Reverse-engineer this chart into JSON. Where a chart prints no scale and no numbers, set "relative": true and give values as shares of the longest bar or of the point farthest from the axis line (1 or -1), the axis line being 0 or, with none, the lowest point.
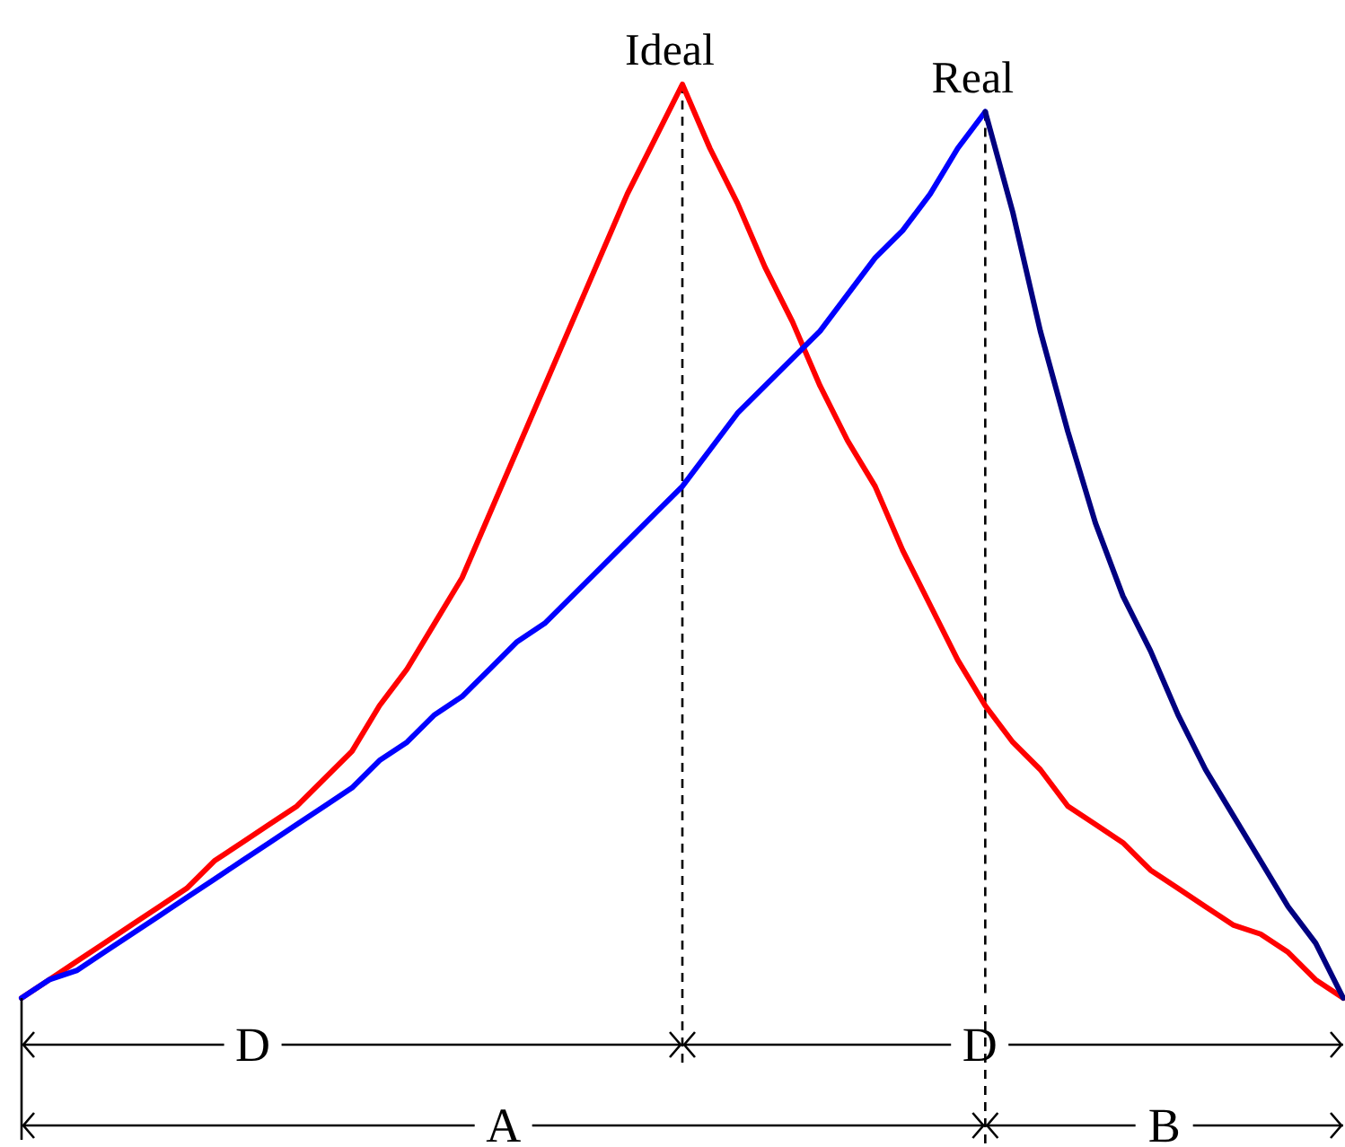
{
  "chart_data": {
    "type": "line",
    "relative": true,
    "line_style": "solid",
    "categories": [
      null,
      null,
      null,
      null,
      null,
      null,
      null,
      null,
      null,
      null,
      null,
      null,
      null,
      null,
      null,
      null,
      null,
      null,
      null,
      null,
      null,
      null,
      null,
      null,
      null,
      null,
      null,
      null,
      null,
      null,
      null,
      null,
      null,
      null,
      null,
      null,
      null,
      null,
      null,
      null,
      null,
      null,
      null,
      null,
      null,
      null,
      null,
      null,
      null
    ],
    "series": [
      {
        "name": "Ideal",
        "color": "#ff0000",
        "values": [
          0,
          0.02,
          0.04,
          0.06,
          0.08,
          0.1,
          0.12,
          0.15,
          0.17,
          0.19,
          0.21,
          0.24,
          0.27,
          0.32,
          0.36,
          0.41,
          0.46,
          0.53,
          0.6,
          0.67,
          0.74,
          0.81,
          0.88,
          0.94,
          1,
          0.93,
          0.87,
          0.8,
          0.74,
          0.67,
          0.61,
          0.56,
          0.49,
          0.43,
          0.37,
          0.32,
          0.28,
          0.25,
          0.21,
          0.19,
          0.17,
          0.14,
          0.12,
          0.1,
          0.08,
          0.07,
          0.05,
          0.02,
          0
        ]
      },
      {
        "name": "Real",
        "color": "#0000ff",
        "values": [
          0,
          0.02,
          0.03,
          0.05,
          0.07,
          0.09,
          0.11,
          0.13,
          0.15,
          0.17,
          0.19,
          0.21,
          0.23,
          0.26,
          0.28,
          0.31,
          0.33,
          0.36,
          0.39,
          0.41,
          0.44,
          0.47,
          0.5,
          0.53,
          0.56,
          0.6,
          0.64,
          0.67,
          0.7,
          0.73,
          0.77,
          0.81,
          0.84,
          0.88,
          0.93,
          0.97,
          null,
          null,
          null,
          null,
          null,
          null,
          null,
          null,
          null,
          null,
          null,
          null,
          null
        ]
      },
      {
        "color": "#000080",
        "values": [
          null,
          null,
          null,
          null,
          null,
          null,
          null,
          null,
          null,
          null,
          null,
          null,
          null,
          null,
          null,
          null,
          null,
          null,
          null,
          null,
          null,
          null,
          null,
          null,
          null,
          null,
          null,
          null,
          null,
          null,
          null,
          null,
          null,
          null,
          null,
          0.97,
          0.86,
          0.73,
          0.62,
          0.52,
          0.44,
          0.38,
          0.31,
          0.25,
          0.2,
          0.15,
          0.1,
          0.06,
          0
        ]
      }
    ],
    "annotations": [
      "D",
      "D",
      "A",
      "B"
    ]
  }
}
